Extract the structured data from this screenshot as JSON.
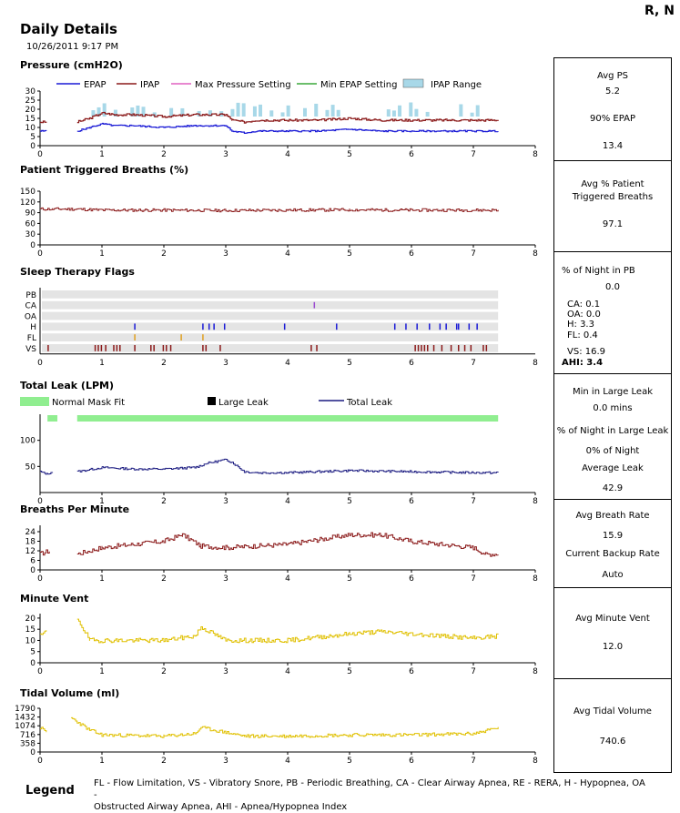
{
  "header": {
    "title": "Daily Details",
    "patient": "R, N",
    "date": "10/26/2011 9:17 PM"
  },
  "colors": {
    "epap": "#1a1ad6",
    "ipap": "#8b1a1a",
    "max": "#e060c0",
    "min": "#3aa83a",
    "range": "#a8d8e8",
    "flag_bg": "#e4e4e4",
    "mask_fit": "#90ee90",
    "leak": "#1a1a80",
    "yellow": "#e0c000"
  },
  "pressure": {
    "title": "Pressure (cmH2O)",
    "legend": [
      "EPAP",
      "IPAP",
      "Max Pressure Setting",
      "Min EPAP Setting",
      "IPAP Range"
    ],
    "yticks": [
      "30",
      "25",
      "20",
      "15",
      "10",
      "5",
      "0"
    ]
  },
  "triggered": {
    "title": "Patient Triggered Breaths (%)",
    "yticks": [
      "150",
      "120",
      "90",
      "60",
      "30",
      "0"
    ]
  },
  "flags": {
    "title": "Sleep Therapy Flags",
    "rows": [
      "PB",
      "CA",
      "OA",
      "H",
      "FL",
      "VS"
    ],
    "events": {
      "CA": [
        4.42
      ],
      "H": [
        1.52,
        2.62,
        2.72,
        2.8,
        2.97,
        3.94,
        4.78,
        5.72,
        5.9,
        6.08,
        6.28,
        6.45,
        6.55,
        6.72,
        6.75,
        6.92,
        7.05
      ],
      "FL": [
        1.52,
        2.27,
        2.62
      ],
      "VS": [
        0.12,
        0.88,
        0.93,
        0.98,
        1.05,
        1.18,
        1.23,
        1.28,
        1.52,
        1.78,
        1.83,
        1.98,
        2.03,
        2.1,
        2.62,
        2.67,
        2.9,
        4.37,
        4.46,
        6.05,
        6.1,
        6.15,
        6.2,
        6.25,
        6.35,
        6.48,
        6.63,
        6.75,
        6.85,
        6.95,
        7.15,
        7.2
      ]
    }
  },
  "leak": {
    "title": "Total Leak (LPM)",
    "legend": [
      "Normal Mask Fit",
      "Large Leak",
      "Total Leak"
    ],
    "yticks": [
      "100",
      "50"
    ]
  },
  "bpm": {
    "title": "Breaths Per Minute",
    "yticks": [
      "24",
      "18",
      "12",
      "6",
      "0"
    ]
  },
  "mv": {
    "title": "Minute Vent",
    "yticks": [
      "20",
      "15",
      "10",
      "5",
      "0"
    ]
  },
  "tv": {
    "title": "Tidal Volume (ml)",
    "yticks": [
      "1790",
      "1432",
      "1074",
      "716",
      "358",
      "0"
    ]
  },
  "xticks": [
    "0",
    "1",
    "2",
    "3",
    "4",
    "5",
    "6",
    "7",
    "8"
  ],
  "panels": {
    "pressure": {
      "avg_ps_label": "Avg PS",
      "avg_ps": "5.2",
      "epap90_label": "90% EPAP",
      "epap90": "13.4"
    },
    "triggered": {
      "label1": "Avg % Patient",
      "label2": "Triggered Breaths",
      "value": "97.1"
    },
    "flags": {
      "pb_label": "% of Night in PB",
      "pb": "0.0",
      "ca": "CA:  0.1",
      "oa": "OA:  0.0",
      "h": "H:   3.3",
      "fl": "FL:   0.4",
      "vs": "VS:  16.9",
      "ahi": "AHI:  3.4"
    },
    "leak": {
      "l1": "Min in Large Leak",
      "v1": "0.0 mins",
      "l2": "% of Night in Large Leak",
      "v2": "0% of Night",
      "l3": "Average Leak",
      "v3": "42.9"
    },
    "bpm": {
      "l1": "Avg Breath Rate",
      "v1": "15.9",
      "l2": "Current Backup Rate",
      "v2": "Auto"
    },
    "mv": {
      "l1": "Avg Minute Vent",
      "v1": "12.0"
    },
    "tv": {
      "l1": "Avg Tidal Volume",
      "v1": "740.6"
    }
  },
  "legend": {
    "title": "Legend",
    "line1": "FL - Flow Limitation, VS - Vibratory Snore, PB - Periodic Breathing, CA - Clear Airway Apnea, RE - RERA, H - Hypopnea, OA -",
    "line2": "Obstructed Airway Apnea, AHI - Apnea/Hypopnea Index"
  },
  "chart_data": [
    {
      "type": "line",
      "title": "Pressure (cmH2O)",
      "xlim": [
        0,
        8
      ],
      "ylim": [
        0,
        30
      ],
      "series": [
        {
          "name": "EPAP",
          "x": [
            0,
            0.1,
            0.15,
            0.5,
            0.6,
            0.8,
            1.0,
            1.2,
            1.5,
            2.0,
            2.5,
            2.7,
            3.0,
            3.1,
            3.3,
            3.5,
            4.0,
            4.5,
            5.0,
            5.5,
            6.0,
            6.5,
            7.0,
            7.4
          ],
          "values": [
            8,
            8,
            null,
            null,
            8,
            10,
            12,
            11,
            11,
            10,
            11,
            11,
            11,
            8,
            7,
            8,
            8,
            8,
            9,
            8,
            8,
            8,
            8,
            8
          ]
        },
        {
          "name": "IPAP",
          "x": [
            0,
            0.1,
            0.15,
            0.5,
            0.6,
            0.8,
            1.0,
            1.2,
            1.5,
            2.0,
            2.5,
            2.7,
            3.0,
            3.1,
            3.3,
            3.5,
            4.0,
            4.5,
            5.0,
            5.5,
            6.0,
            6.5,
            7.0,
            7.4
          ],
          "values": [
            13,
            13,
            null,
            null,
            13,
            15,
            18,
            17,
            17,
            16,
            17,
            17,
            17,
            14,
            13,
            14,
            14,
            14,
            15,
            14,
            14,
            14,
            14,
            14
          ]
        }
      ]
    },
    {
      "type": "line",
      "title": "Patient Triggered Breaths (%)",
      "xlim": [
        0,
        8
      ],
      "ylim": [
        0,
        150
      ],
      "series": [
        {
          "x": [
            0,
            0.2,
            0.6,
            1,
            2,
            3,
            4,
            5,
            6,
            7,
            7.4
          ],
          "values": [
            100,
            100,
            100,
            97,
            97,
            96,
            97,
            98,
            97,
            97,
            97
          ]
        }
      ]
    },
    {
      "type": "line",
      "title": "Total Leak (LPM)",
      "xlim": [
        0,
        8
      ],
      "ylim": [
        0,
        150
      ],
      "series": [
        {
          "name": "Total Leak",
          "x": [
            0,
            0.1,
            0.2,
            0.5,
            0.6,
            1,
            1.5,
            2,
            2.5,
            2.7,
            3.0,
            3.1,
            3.3,
            3.5,
            4,
            5,
            6,
            7,
            7.4
          ],
          "values": [
            40,
            35,
            40,
            null,
            40,
            48,
            45,
            45,
            48,
            56,
            63,
            58,
            40,
            38,
            38,
            42,
            40,
            38,
            38
          ]
        }
      ]
    },
    {
      "type": "line",
      "title": "Breaths Per Minute",
      "xlim": [
        0,
        8
      ],
      "ylim": [
        0,
        28
      ],
      "series": [
        {
          "x": [
            0,
            0.15,
            0.5,
            0.6,
            1,
            1.5,
            2,
            2.3,
            2.6,
            3,
            3.5,
            4,
            4.5,
            5,
            5.5,
            6,
            6.5,
            7,
            7.2,
            7.4
          ],
          "values": [
            10,
            12,
            null,
            10,
            14,
            16,
            18,
            22,
            15,
            14,
            15,
            16,
            19,
            22,
            22,
            18,
            16,
            14,
            10,
            10
          ]
        }
      ]
    },
    {
      "type": "line",
      "title": "Minute Vent",
      "xlim": [
        0,
        8
      ],
      "ylim": [
        0,
        22
      ],
      "series": [
        {
          "x": [
            0,
            0.1,
            0.5,
            0.6,
            0.8,
            1,
            2,
            2.5,
            2.6,
            3,
            4,
            5,
            5.5,
            6,
            7,
            7.4
          ],
          "values": [
            12,
            14,
            null,
            20,
            10,
            10,
            10,
            12,
            16,
            10,
            10,
            13,
            14,
            13,
            11,
            12
          ]
        }
      ]
    },
    {
      "type": "line",
      "title": "Tidal Volume (ml)",
      "xlim": [
        0,
        8
      ],
      "ylim": [
        0,
        1790
      ],
      "series": [
        {
          "x": [
            0,
            0.1,
            0.3,
            0.5,
            0.8,
            1,
            2,
            2.5,
            2.6,
            3,
            3.3,
            4,
            5,
            6,
            7,
            7.4
          ],
          "values": [
            1000,
            800,
            null,
            1400,
            900,
            700,
            650,
            750,
            1000,
            800,
            650,
            650,
            700,
            700,
            750,
            1000
          ]
        }
      ]
    }
  ]
}
